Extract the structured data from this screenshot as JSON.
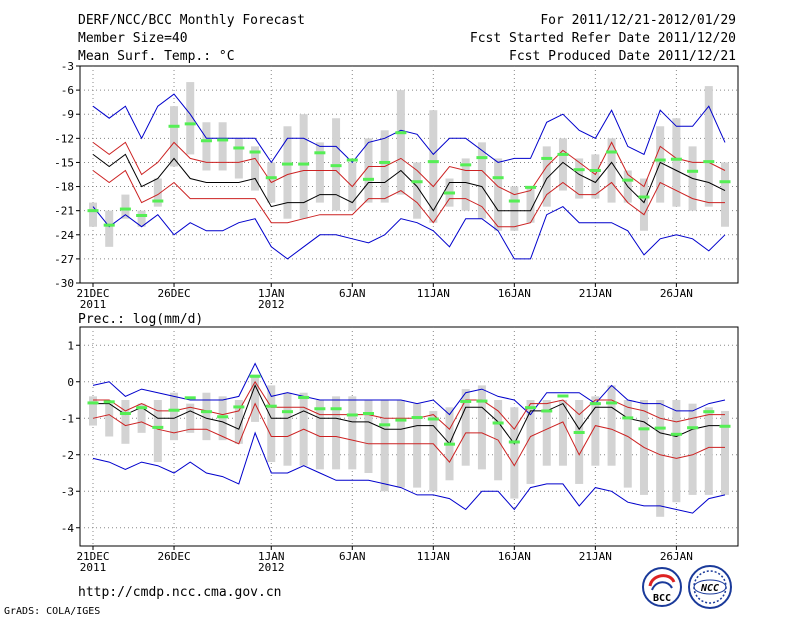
{
  "header": {
    "title": "DERF/NCC/BCC Monthly Forecast",
    "member_size": "Member Size=40",
    "variable": "Mean Surf. Temp.: °C",
    "forecast_for": "For 2011/12/21-2012/01/29",
    "start_date": "Fcst Started Refer Date 2011/12/20",
    "produced_date": "Fcst Produced Date 2011/12/21"
  },
  "footer": {
    "url": "http://cmdp.ncc.cma.gov.cn",
    "grads": "GrADS: COLA/IGES",
    "bcc_logo_text": "BCC",
    "ncc_logo_text": "NCC"
  },
  "colors": {
    "box": "#d3d3d3",
    "median": "#55ee55",
    "mean": "#000000",
    "std": "#cc2222",
    "extreme": "#0000cc",
    "grid": "#888888"
  },
  "chart_data": [
    {
      "type": "line",
      "title": "Mean Surf. Temp.: °C",
      "days": 40,
      "ylim": [
        -30,
        -3
      ],
      "yticks": [
        -3,
        -6,
        -9,
        -12,
        -15,
        -18,
        -21,
        -24,
        -27,
        -30
      ],
      "xticks": [
        {
          "day": 0,
          "label": "21DEC",
          "sub": "2011"
        },
        {
          "day": 5,
          "label": "26DEC",
          "sub": ""
        },
        {
          "day": 11,
          "label": "1JAN",
          "sub": "2012"
        },
        {
          "day": 16,
          "label": "6JAN",
          "sub": ""
        },
        {
          "day": 21,
          "label": "11JAN",
          "sub": ""
        },
        {
          "day": 26,
          "label": "16JAN",
          "sub": ""
        },
        {
          "day": 31,
          "label": "21JAN",
          "sub": ""
        },
        {
          "day": 36,
          "label": "26JAN",
          "sub": ""
        }
      ],
      "series": [
        {
          "name": "max",
          "values": [
            -8,
            -9.5,
            -8,
            -12,
            -8,
            -6.5,
            -9,
            -12,
            -12,
            -12,
            -12,
            -15,
            -12,
            -12,
            -13,
            -13,
            -15,
            -12.5,
            -12,
            -11,
            -11.5,
            -14,
            -12,
            -12,
            -13.5,
            -15,
            -14.5,
            -14.5,
            -10,
            -9,
            -11,
            -12,
            -8.5,
            -13,
            -14,
            -8.5,
            -10.5,
            -10.5,
            -8,
            -12.5
          ]
        },
        {
          "name": "std_upper",
          "values": [
            -12.5,
            -14,
            -12.5,
            -16.5,
            -15,
            -12.5,
            -14.5,
            -15,
            -15,
            -15,
            -14.5,
            -17.5,
            -16.5,
            -16,
            -16,
            -16,
            -18,
            -15.5,
            -15.5,
            -14.5,
            -16,
            -18,
            -15.5,
            -16,
            -16,
            -18,
            -19,
            -18.5,
            -15.5,
            -13.5,
            -15,
            -16.5,
            -12.5,
            -16.5,
            -18,
            -13,
            -14.5,
            -15,
            -15,
            -16
          ]
        },
        {
          "name": "mean",
          "values": [
            -14,
            -15.5,
            -14,
            -18,
            -17,
            -14.5,
            -17,
            -17.5,
            -17.5,
            -17.5,
            -17,
            -20.5,
            -20,
            -20,
            -19,
            -19,
            -20,
            -17.5,
            -17.5,
            -16,
            -18,
            -21,
            -17.5,
            -17.5,
            -18,
            -21,
            -21,
            -21,
            -17,
            -15,
            -16.5,
            -17.5,
            -15,
            -18,
            -20,
            -15,
            -16,
            -17,
            -17.5,
            -18.5
          ]
        },
        {
          "name": "std_lower",
          "values": [
            -16,
            -17.5,
            -16,
            -20,
            -19,
            -17.5,
            -19.5,
            -19.5,
            -19.5,
            -19.5,
            -19.5,
            -22.5,
            -22.5,
            -22,
            -21.5,
            -21.5,
            -21.5,
            -19.5,
            -19.5,
            -18.5,
            -20,
            -22.5,
            -19.5,
            -19.5,
            -20.5,
            -23,
            -23,
            -22.5,
            -19,
            -17.5,
            -19,
            -19,
            -17.5,
            -20,
            -21.5,
            -17.5,
            -18.5,
            -19.5,
            -20,
            -20
          ]
        },
        {
          "name": "min",
          "values": [
            -20.5,
            -23,
            -21.5,
            -23,
            -21.5,
            -24,
            -22.5,
            -23.5,
            -23.5,
            -22.5,
            -22,
            -25.5,
            -27,
            -25.5,
            -24,
            -24,
            -24.5,
            -25,
            -24,
            -22,
            -22.5,
            -23.5,
            -25.5,
            -22,
            -22,
            -23.5,
            -27,
            -27,
            -21.5,
            -20.5,
            -22.5,
            -22.5,
            -22.5,
            -23.5,
            -26.5,
            -24.5,
            -24,
            -24.5,
            -26,
            -24
          ]
        },
        {
          "name": "box_top",
          "values": [
            -20,
            -21,
            -19,
            -21,
            -17,
            -8,
            -5,
            -10,
            -10,
            -12,
            -13,
            -15,
            -10.5,
            -9,
            -12.5,
            -9.5,
            -15,
            -12,
            -11,
            -6,
            -15,
            -8.5,
            -17,
            -14.5,
            -12.5,
            -14.5,
            -18,
            -18,
            -13,
            -12,
            -14.5,
            -14,
            -12,
            -16,
            -17,
            -10.5,
            -9.5,
            -13,
            -5.5,
            -15
          ]
        },
        {
          "name": "box_bottom",
          "values": [
            -23,
            -25.5,
            -22,
            -23,
            -20.5,
            -15.5,
            -14,
            -16,
            -16,
            -17,
            -18.5,
            -20,
            -22,
            -22,
            -20,
            -21,
            -21,
            -20,
            -20,
            -19,
            -22,
            -22.5,
            -20.5,
            -21,
            -22,
            -23.5,
            -23.5,
            -22.5,
            -20.5,
            -18.5,
            -19.5,
            -19.5,
            -20,
            -20,
            -23.5,
            -20,
            -20.5,
            -21,
            -20.5,
            -23
          ]
        },
        {
          "name": "median",
          "values": [
            -21,
            -22.8,
            -20.8,
            -21.6,
            -19.8,
            -10.5,
            -10.2,
            -12.3,
            -12.2,
            -13.2,
            -13.7,
            -16.9,
            -15.2,
            -15.2,
            -13.8,
            -15.4,
            -14.7,
            -17.1,
            -15,
            -11.3,
            -17.4,
            -14.9,
            -18.8,
            -15.3,
            -14.4,
            -16.9,
            -19.8,
            -18.1,
            -14.5,
            -14,
            -15.9,
            -16,
            -13.7,
            -17.2,
            -19.3,
            -14.7,
            -14.6,
            -16.1,
            -14.9,
            -17.4
          ]
        }
      ]
    },
    {
      "type": "line",
      "title": "Prec.: log(mm/d)",
      "days": 40,
      "ylim": [
        -4.5,
        1.5
      ],
      "yticks": [
        1,
        0,
        -1,
        -2,
        -3,
        -4
      ],
      "xticks": [
        {
          "day": 0,
          "label": "21DEC",
          "sub": "2011"
        },
        {
          "day": 5,
          "label": "26DEC",
          "sub": ""
        },
        {
          "day": 11,
          "label": "1JAN",
          "sub": "2012"
        },
        {
          "day": 16,
          "label": "6JAN",
          "sub": ""
        },
        {
          "day": 21,
          "label": "11JAN",
          "sub": ""
        },
        {
          "day": 26,
          "label": "16JAN",
          "sub": ""
        },
        {
          "day": 31,
          "label": "21JAN",
          "sub": ""
        },
        {
          "day": 36,
          "label": "26JAN",
          "sub": ""
        }
      ],
      "series": [
        {
          "name": "max",
          "values": [
            -0.1,
            0,
            -0.4,
            -0.2,
            -0.3,
            -0.4,
            -0.5,
            -0.5,
            -0.5,
            -0.4,
            0.5,
            -0.4,
            -0.3,
            -0.4,
            -0.5,
            -0.5,
            -0.5,
            -0.5,
            -0.5,
            -0.5,
            -0.6,
            -0.5,
            -0.9,
            -0.3,
            -0.2,
            -0.4,
            -0.5,
            -0.9,
            -0.3,
            -0.3,
            -0.3,
            -0.6,
            -0.1,
            -0.5,
            -0.6,
            -0.6,
            -0.8,
            -0.8,
            -0.6,
            -0.5
          ]
        },
        {
          "name": "std_upper",
          "values": [
            -0.5,
            -0.5,
            -0.8,
            -0.6,
            -0.8,
            -0.8,
            -0.7,
            -0.8,
            -0.9,
            -0.8,
            0,
            -0.7,
            -0.7,
            -0.7,
            -0.9,
            -0.9,
            -0.9,
            -0.9,
            -1,
            -1,
            -1,
            -0.9,
            -1.3,
            -0.5,
            -0.5,
            -0.8,
            -1.3,
            -0.6,
            -0.6,
            -0.5,
            -0.9,
            -0.5,
            -0.5,
            -0.7,
            -0.8,
            -1,
            -1.1,
            -1,
            -0.9,
            -0.9
          ]
        },
        {
          "name": "mean",
          "values": [
            -0.6,
            -0.6,
            -0.9,
            -0.7,
            -1.0,
            -1.0,
            -0.8,
            -1.0,
            -1.1,
            -1.3,
            -0.1,
            -1.0,
            -1.0,
            -0.8,
            -1.0,
            -1.0,
            -1.1,
            -1.1,
            -1.3,
            -1.3,
            -1.2,
            -1.2,
            -1.7,
            -0.7,
            -0.7,
            -1.1,
            -1.7,
            -0.8,
            -0.8,
            -0.6,
            -1.3,
            -0.7,
            -0.7,
            -1.0,
            -1.1,
            -1.4,
            -1.5,
            -1.3,
            -1.2,
            -1.2
          ]
        },
        {
          "name": "std_lower",
          "values": [
            -1,
            -0.9,
            -1.2,
            -1.1,
            -1.3,
            -1.4,
            -1.3,
            -1.3,
            -1.5,
            -1.7,
            -0.6,
            -1.5,
            -1.5,
            -1.3,
            -1.5,
            -1.5,
            -1.6,
            -1.7,
            -1.7,
            -1.7,
            -1.7,
            -1.7,
            -2.2,
            -1.4,
            -1.4,
            -1.6,
            -2.3,
            -1.5,
            -1.3,
            -1.1,
            -2,
            -1.2,
            -1.3,
            -1.5,
            -1.8,
            -2,
            -2.1,
            -2,
            -1.8,
            -1.8
          ]
        },
        {
          "name": "min",
          "values": [
            -2.1,
            -2.2,
            -2.4,
            -2.2,
            -2.3,
            -2.5,
            -2.2,
            -2.5,
            -2.6,
            -2.8,
            -1.4,
            -2.5,
            -2.5,
            -2.3,
            -2.5,
            -2.7,
            -2.7,
            -2.7,
            -2.8,
            -2.9,
            -3.1,
            -3.1,
            -3.2,
            -3.5,
            -3.0,
            -3.0,
            -3.5,
            -2.9,
            -2.8,
            -2.8,
            -3.4,
            -2.9,
            -3.0,
            -3.3,
            -3.4,
            -3.4,
            -3.5,
            -3.6,
            -3.2,
            -3.1
          ]
        },
        {
          "name": "box_top",
          "values": [
            -0.4,
            -0.6,
            -0.5,
            -0.6,
            -0.5,
            -0.3,
            -0.6,
            -0.3,
            -0.4,
            -0.5,
            0.2,
            -0.1,
            -0.3,
            -0.3,
            -0.5,
            -0.4,
            -0.4,
            -0.5,
            -0.5,
            -0.5,
            -0.6,
            -0.8,
            -0.7,
            -0.2,
            -0.1,
            -0.5,
            -0.7,
            -0.5,
            -0.5,
            -0.5,
            -0.5,
            -0.4,
            -0.1,
            -0.5,
            -0.5,
            -0.5,
            -0.5,
            -0.6,
            -0.7,
            -0.8
          ]
        },
        {
          "name": "box_bottom",
          "values": [
            -1.2,
            -1.5,
            -1.7,
            -1.4,
            -2.2,
            -1.6,
            -1.4,
            -1.6,
            -1.6,
            -1.7,
            -1.1,
            -2.2,
            -2.3,
            -2.3,
            -2.4,
            -2.4,
            -2.4,
            -2.5,
            -3.0,
            -2.9,
            -2.9,
            -3.0,
            -2.7,
            -2.3,
            -2.4,
            -2.7,
            -3.2,
            -2.8,
            -2.3,
            -2.3,
            -2.8,
            -2.3,
            -2.3,
            -2.9,
            -3.1,
            -3.7,
            -3.3,
            -3.1,
            -3.1,
            -3.1
          ]
        },
        {
          "name": "median",
          "values": [
            -0.58,
            -0.55,
            -0.87,
            -0.71,
            -1.25,
            -0.78,
            -0.44,
            -0.82,
            -0.96,
            -0.69,
            0.15,
            -0.67,
            -0.82,
            -0.43,
            -0.74,
            -0.74,
            -0.91,
            -0.87,
            -1.18,
            -1.05,
            -0.98,
            -1.02,
            -1.71,
            -0.54,
            -0.53,
            -1.13,
            -1.65,
            -0.71,
            -0.8,
            -0.39,
            -1.39,
            -0.6,
            -0.58,
            -0.99,
            -1.29,
            -1.27,
            -1.44,
            -1.26,
            -0.82,
            -1.22
          ]
        }
      ]
    }
  ]
}
